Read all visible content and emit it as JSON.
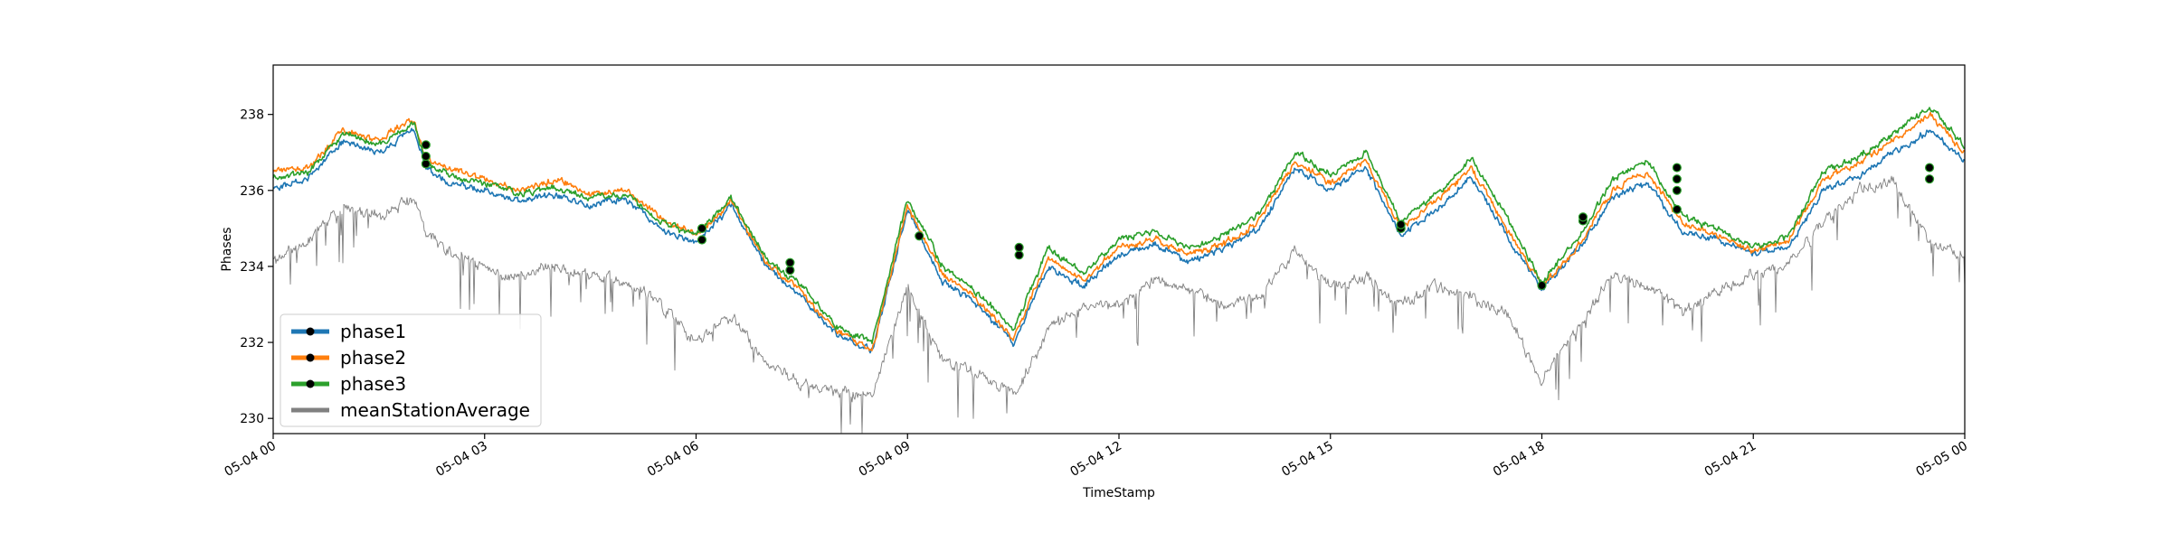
{
  "chart_data": {
    "type": "line",
    "title": "",
    "xlabel": "TimeStamp",
    "ylabel": "Phases",
    "xlim": [
      "2024-05-04 00:00",
      "2024-05-05 00:00"
    ],
    "ylim": [
      229.6,
      239.3
    ],
    "yticks": [
      230,
      232,
      234,
      236,
      238
    ],
    "xticks": [
      {
        "x": "2024-05-04 00:00",
        "label": "05-04 00"
      },
      {
        "x": "2024-05-04 03:00",
        "label": "05-04 03"
      },
      {
        "x": "2024-05-04 06:00",
        "label": "05-04 06"
      },
      {
        "x": "2024-05-04 09:00",
        "label": "05-04 09"
      },
      {
        "x": "2024-05-04 12:00",
        "label": "05-04 12"
      },
      {
        "x": "2024-05-04 15:00",
        "label": "05-04 15"
      },
      {
        "x": "2024-05-04 18:00",
        "label": "05-04 18"
      },
      {
        "x": "2024-05-04 21:00",
        "label": "05-04 21"
      },
      {
        "x": "2024-05-05 00:00",
        "label": "05-05 00"
      }
    ],
    "grid": false,
    "legend_position": "bottom-left",
    "series": [
      {
        "name": "phase1",
        "color": "#1f77b4",
        "marker": "black-dot"
      },
      {
        "name": "phase2",
        "color": "#ff7f0e",
        "marker": "black-dot"
      },
      {
        "name": "phase3",
        "color": "#2ca02c",
        "marker": "black-dot"
      },
      {
        "name": "meanStationAverage",
        "color": "#808080",
        "marker": "none"
      }
    ],
    "x": [
      "2024-05-04 00:00",
      "2024-05-04 00:30",
      "2024-05-04 01:00",
      "2024-05-04 01:30",
      "2024-05-04 02:00",
      "2024-05-04 02:10",
      "2024-05-04 02:30",
      "2024-05-04 03:00",
      "2024-05-04 03:30",
      "2024-05-04 04:00",
      "2024-05-04 04:30",
      "2024-05-04 05:00",
      "2024-05-04 05:30",
      "2024-05-04 06:00",
      "2024-05-04 06:30",
      "2024-05-04 07:00",
      "2024-05-04 07:30",
      "2024-05-04 08:00",
      "2024-05-04 08:30",
      "2024-05-04 09:00",
      "2024-05-04 09:30",
      "2024-05-04 10:00",
      "2024-05-04 10:30",
      "2024-05-04 11:00",
      "2024-05-04 11:30",
      "2024-05-04 12:00",
      "2024-05-04 12:30",
      "2024-05-04 13:00",
      "2024-05-04 13:30",
      "2024-05-04 14:00",
      "2024-05-04 14:30",
      "2024-05-04 15:00",
      "2024-05-04 15:30",
      "2024-05-04 16:00",
      "2024-05-04 16:30",
      "2024-05-04 17:00",
      "2024-05-04 17:30",
      "2024-05-04 18:00",
      "2024-05-04 18:30",
      "2024-05-04 19:00",
      "2024-05-04 19:30",
      "2024-05-04 20:00",
      "2024-05-04 20:30",
      "2024-05-04 21:00",
      "2024-05-04 21:30",
      "2024-05-04 22:00",
      "2024-05-04 22:30",
      "2024-05-04 23:00",
      "2024-05-04 23:30",
      "2024-05-05 00:00"
    ],
    "values": {
      "phase1": [
        236.0,
        236.3,
        237.3,
        237.0,
        237.6,
        236.6,
        236.2,
        236.0,
        235.7,
        235.9,
        235.6,
        235.8,
        235.0,
        234.6,
        235.6,
        234.0,
        233.2,
        232.2,
        231.8,
        235.5,
        233.6,
        233.0,
        232.0,
        234.0,
        233.5,
        234.3,
        234.6,
        234.1,
        234.5,
        235.0,
        236.6,
        236.0,
        236.6,
        234.8,
        235.5,
        236.4,
        234.8,
        233.4,
        234.4,
        235.8,
        236.2,
        234.9,
        234.7,
        234.3,
        234.5,
        236.0,
        236.4,
        237.0,
        237.6,
        236.8
      ],
      "phase2": [
        236.5,
        236.6,
        237.6,
        237.3,
        237.9,
        236.8,
        236.6,
        236.3,
        236.0,
        236.3,
        235.9,
        236.0,
        235.3,
        234.8,
        235.7,
        234.1,
        233.3,
        232.3,
        231.8,
        235.6,
        233.8,
        233.1,
        232.1,
        234.2,
        233.6,
        234.5,
        234.7,
        234.3,
        234.6,
        235.2,
        236.8,
        236.2,
        236.8,
        235.0,
        235.7,
        236.6,
        235.0,
        233.5,
        234.5,
        236.0,
        236.5,
        235.1,
        234.8,
        234.4,
        234.7,
        236.3,
        236.7,
        237.3,
        238.0,
        237.0
      ],
      "phase3": [
        236.3,
        236.5,
        237.5,
        237.2,
        237.8,
        236.7,
        236.4,
        236.2,
        235.9,
        236.1,
        235.8,
        235.9,
        235.2,
        234.8,
        235.8,
        234.2,
        233.5,
        232.4,
        232.0,
        235.8,
        234.0,
        233.3,
        232.3,
        234.5,
        233.8,
        234.7,
        234.9,
        234.5,
        234.8,
        235.4,
        237.0,
        236.4,
        237.0,
        235.2,
        235.9,
        236.8,
        235.3,
        233.6,
        234.7,
        236.3,
        236.8,
        235.3,
        235.0,
        234.5,
        234.8,
        236.5,
        236.9,
        237.5,
        238.2,
        237.2
      ],
      "meanStationAverage": [
        234.2,
        234.7,
        235.6,
        235.3,
        235.8,
        234.9,
        234.4,
        234.0,
        233.7,
        234.0,
        233.7,
        233.6,
        233.0,
        232.0,
        232.7,
        231.4,
        230.9,
        230.7,
        230.6,
        233.5,
        231.5,
        231.2,
        230.6,
        232.3,
        233.0,
        233.0,
        233.7,
        233.4,
        233.0,
        233.2,
        234.4,
        233.5,
        233.7,
        233.0,
        233.5,
        233.2,
        232.8,
        231.0,
        232.3,
        233.8,
        233.5,
        232.8,
        233.4,
        233.8,
        234.0,
        235.2,
        236.0,
        236.3,
        234.6,
        234.3
      ]
    },
    "markers": [
      {
        "x": "2024-05-04 02:10",
        "y": [
          236.7,
          236.9,
          237.2
        ]
      },
      {
        "x": "2024-05-04 06:05",
        "y": [
          234.7,
          235.0
        ]
      },
      {
        "x": "2024-05-04 07:20",
        "y": [
          233.9,
          234.1
        ]
      },
      {
        "x": "2024-05-04 09:10",
        "y": [
          234.8
        ]
      },
      {
        "x": "2024-05-04 10:35",
        "y": [
          234.3,
          234.5
        ]
      },
      {
        "x": "2024-05-04 16:00",
        "y": [
          235.0,
          235.1
        ]
      },
      {
        "x": "2024-05-04 18:00",
        "y": [
          233.5
        ]
      },
      {
        "x": "2024-05-04 18:35",
        "y": [
          235.2,
          235.3
        ]
      },
      {
        "x": "2024-05-04 19:55",
        "y": [
          235.5,
          236.0,
          236.3,
          236.6
        ]
      },
      {
        "x": "2024-05-04 23:30",
        "y": [
          236.3,
          236.6
        ]
      }
    ]
  }
}
